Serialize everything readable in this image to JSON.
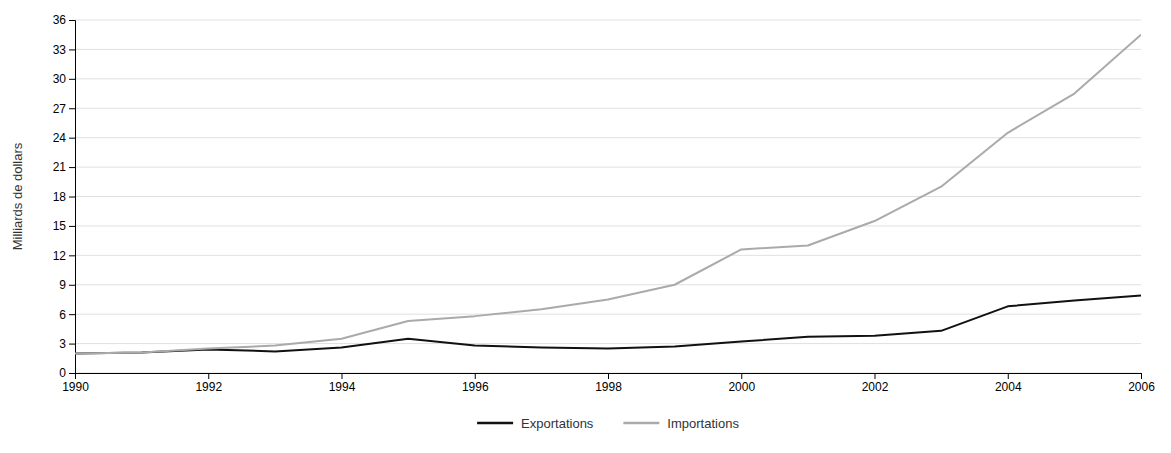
{
  "chart_data": {
    "type": "line",
    "x": [
      1990,
      1991,
      1992,
      1993,
      1994,
      1995,
      1996,
      1997,
      1998,
      1999,
      2000,
      2001,
      2002,
      2003,
      2004,
      2005,
      2006
    ],
    "series": [
      {
        "name": "Exportations",
        "color": "#111111",
        "values": [
          2.0,
          2.1,
          2.4,
          2.2,
          2.6,
          3.5,
          2.8,
          2.6,
          2.5,
          2.7,
          3.2,
          3.7,
          3.8,
          4.3,
          6.8,
          7.4,
          7.9
        ]
      },
      {
        "name": "Importations",
        "color": "#aaaaaa",
        "values": [
          2.0,
          2.1,
          2.5,
          2.8,
          3.5,
          5.3,
          5.8,
          6.5,
          7.5,
          9.0,
          12.6,
          13.0,
          15.5,
          19.0,
          24.5,
          28.5,
          34.5
        ]
      }
    ],
    "ylabel": "Milliards de dollars",
    "xlim": [
      1990,
      2006
    ],
    "ylim": [
      0,
      36
    ],
    "xticks": [
      1990,
      1992,
      1994,
      1996,
      1998,
      2000,
      2002,
      2004,
      2006
    ],
    "yticks": [
      0,
      3,
      6,
      9,
      12,
      15,
      18,
      21,
      24,
      27,
      30,
      33,
      36
    ],
    "grid": true,
    "legend": "bottom"
  }
}
